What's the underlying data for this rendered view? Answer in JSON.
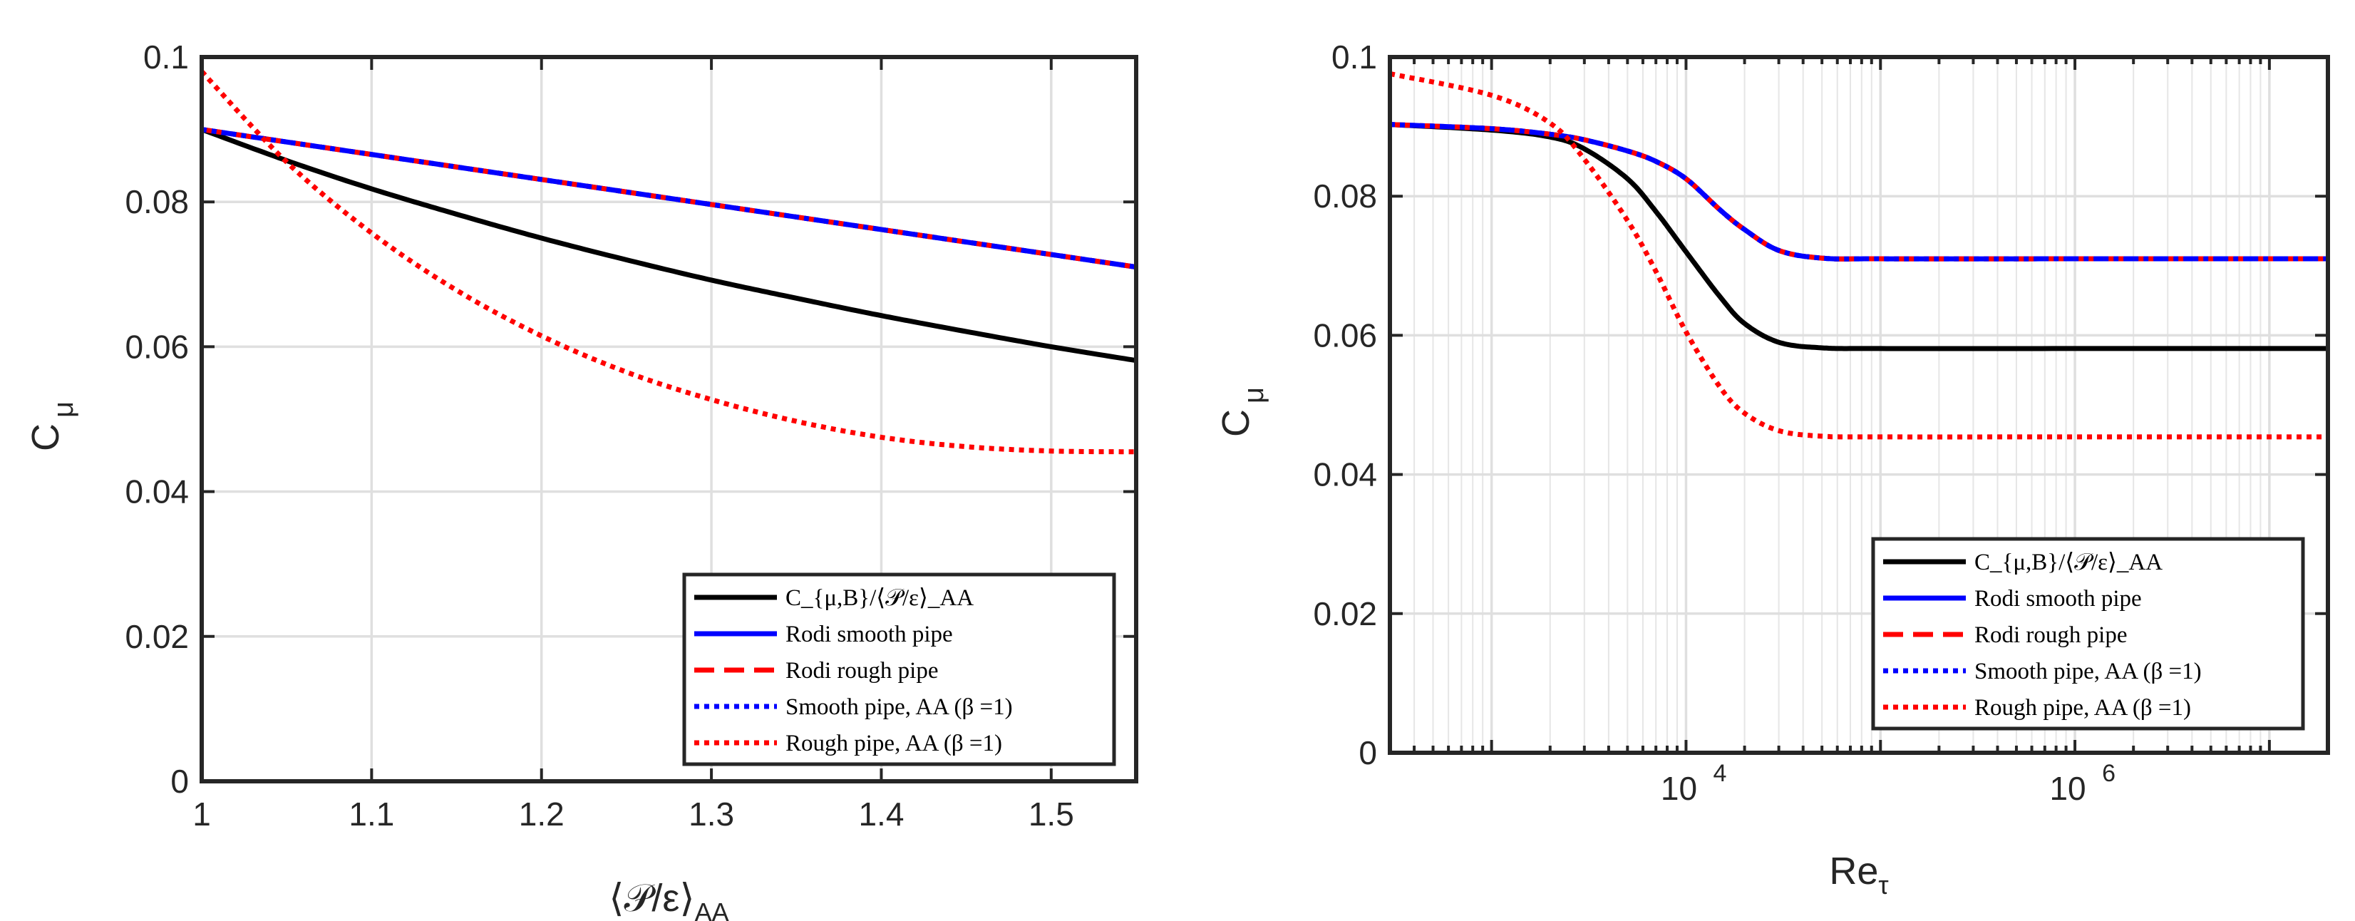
{
  "chart_data": [
    {
      "type": "line",
      "xlabel": "⟨𝒫/ε⟩",
      "xlabel_sub": "AA",
      "ylabel": "C",
      "ylabel_sub": "μ",
      "xlim": [
        1,
        1.55
      ],
      "ylim": [
        0,
        0.1
      ],
      "xscale": "linear",
      "grid": true,
      "legend_position": "bottom-right",
      "xticks": [
        1,
        1.1,
        1.2,
        1.3,
        1.4,
        1.5
      ],
      "xtick_labels": [
        "1",
        "1.1",
        "1.2",
        "1.3",
        "1.4",
        "1.5"
      ],
      "yticks": [
        0,
        0.02,
        0.04,
        0.06,
        0.08,
        0.1
      ],
      "ytick_labels": [
        "0",
        "0.02",
        "0.04",
        "0.06",
        "0.08",
        "0.1"
      ],
      "series": [
        {
          "name": "C_{μ,B}/⟨𝒫/ε⟩_AA",
          "color": "#000000",
          "style": "solid",
          "x": [
            1,
            1.05,
            1.1,
            1.15,
            1.2,
            1.25,
            1.3,
            1.35,
            1.4,
            1.45,
            1.5,
            1.55
          ],
          "y": [
            0.09,
            0.0857,
            0.0818,
            0.0783,
            0.075,
            0.072,
            0.0692,
            0.0667,
            0.0643,
            0.0621,
            0.06,
            0.0581
          ]
        },
        {
          "name": "Rodi smooth pipe",
          "color": "#0000ff",
          "style": "solid",
          "x": [
            1,
            1.55
          ],
          "y": [
            0.09,
            0.071
          ]
        },
        {
          "name": "Rodi rough pipe",
          "color": "#ff0000",
          "style": "dashed",
          "x": [
            1,
            1.55
          ],
          "y": [
            0.09,
            0.071
          ]
        },
        {
          "name": "Smooth pipe, AA (β =1)",
          "color": "#0000ff",
          "style": "dotted",
          "x": [
            1,
            1.55
          ],
          "y": [
            0.09,
            0.071
          ]
        },
        {
          "name": "Rough pipe, AA (β =1)",
          "color": "#ff0000",
          "style": "dotted",
          "x": [
            1,
            1.05,
            1.1,
            1.15,
            1.2,
            1.25,
            1.3,
            1.35,
            1.4,
            1.45,
            1.5,
            1.55
          ],
          "y": [
            0.098,
            0.0855,
            0.0757,
            0.0678,
            0.0615,
            0.0565,
            0.0527,
            0.0497,
            0.0475,
            0.0462,
            0.0456,
            0.0455
          ]
        }
      ]
    },
    {
      "type": "line",
      "xlabel": "Re",
      "xlabel_sub": "τ",
      "ylabel": "C",
      "ylabel_sub": "μ",
      "xlim": [
        300,
        20000000
      ],
      "ylim": [
        0,
        0.1
      ],
      "xscale": "log",
      "grid": true,
      "legend_position": "bottom-right",
      "xticks": [
        10000,
        1000000
      ],
      "xtick_bases": [
        "10",
        "10"
      ],
      "xtick_exponents": [
        "4",
        "6"
      ],
      "yticks": [
        0,
        0.02,
        0.04,
        0.06,
        0.08,
        0.1
      ],
      "ytick_labels": [
        "0",
        "0.02",
        "0.04",
        "0.06",
        "0.08",
        "0.1"
      ],
      "series": [
        {
          "name": "C_{μ,B}/⟨𝒫/ε⟩_AA",
          "color": "#000000",
          "style": "solid",
          "x": [
            300,
            1000,
            2000,
            3000,
            5000,
            7000,
            10000,
            15000,
            20000,
            30000,
            50000,
            100000,
            1000000,
            20000000
          ],
          "y": [
            0.0903,
            0.0895,
            0.0885,
            0.0868,
            0.0825,
            0.0778,
            0.072,
            0.0655,
            0.0617,
            0.059,
            0.0582,
            0.0581,
            0.0581,
            0.0581
          ]
        },
        {
          "name": "Rodi smooth pipe",
          "color": "#0000ff",
          "style": "solid",
          "x": [
            300,
            1000,
            2000,
            3000,
            5000,
            7000,
            10000,
            15000,
            20000,
            30000,
            50000,
            100000,
            1000000,
            20000000
          ],
          "y": [
            0.0903,
            0.0897,
            0.0889,
            0.0881,
            0.0865,
            0.085,
            0.0825,
            0.078,
            0.0752,
            0.0722,
            0.0711,
            0.071,
            0.071,
            0.071
          ]
        },
        {
          "name": "Rodi rough pipe",
          "color": "#ff0000",
          "style": "dashed",
          "x": [
            300,
            1000,
            2000,
            3000,
            5000,
            7000,
            10000,
            15000,
            20000,
            30000,
            50000,
            100000,
            1000000,
            20000000
          ],
          "y": [
            0.0903,
            0.0897,
            0.0889,
            0.0881,
            0.0865,
            0.085,
            0.0825,
            0.078,
            0.0752,
            0.0722,
            0.0711,
            0.071,
            0.071,
            0.071
          ]
        },
        {
          "name": "Smooth pipe, AA (β =1)",
          "color": "#0000ff",
          "style": "dotted",
          "x": [
            300,
            1000,
            2000,
            3000,
            5000,
            7000,
            10000,
            15000,
            20000,
            30000,
            50000,
            100000,
            1000000,
            20000000
          ],
          "y": [
            0.0903,
            0.0897,
            0.0889,
            0.0881,
            0.0865,
            0.085,
            0.0825,
            0.078,
            0.0752,
            0.0722,
            0.0711,
            0.071,
            0.071,
            0.071
          ]
        },
        {
          "name": "Rough pipe, AA (β =1)",
          "color": "#ff0000",
          "style": "dotted",
          "x": [
            300,
            1000,
            2000,
            3000,
            5000,
            7000,
            10000,
            15000,
            20000,
            30000,
            50000,
            100000,
            1000000,
            20000000
          ],
          "y": [
            0.0976,
            0.0945,
            0.0905,
            0.0853,
            0.0765,
            0.0692,
            0.0605,
            0.0525,
            0.0488,
            0.0463,
            0.0455,
            0.0454,
            0.0454,
            0.0454
          ]
        }
      ]
    }
  ]
}
